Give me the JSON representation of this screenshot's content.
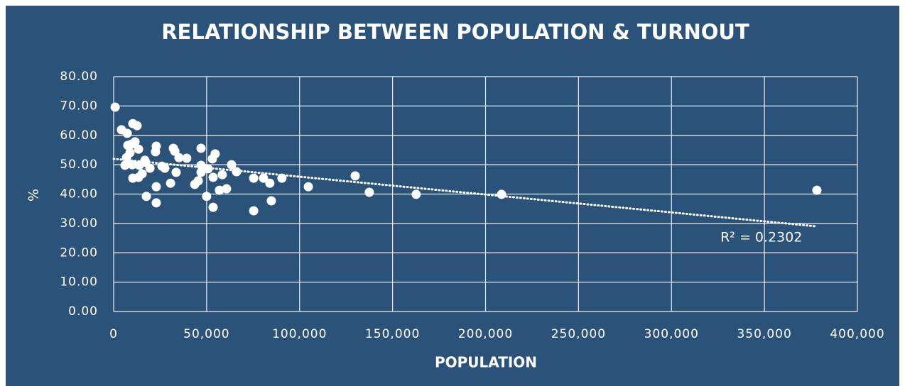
{
  "chart_data": {
    "type": "scatter",
    "title": "RELATIONSHIP BETWEEN POPULATION & TURNOUT",
    "x_label": "POPULATION",
    "y_label": "%",
    "color": "#ffffff",
    "grid": true,
    "xlim": [
      0,
      400000
    ],
    "ylim": [
      0,
      80
    ],
    "xticks": [
      0,
      {
        "value": 50000,
        "label": "50,000"
      },
      {
        "value": 100000,
        "label": "100,000"
      },
      {
        "value": 150000,
        "label": "150,000"
      },
      {
        "value": 200000,
        "label": "200,000"
      },
      {
        "value": 250000,
        "label": "250,000"
      },
      {
        "value": 300000,
        "label": "300,000"
      },
      {
        "value": 350000,
        "label": "350,000"
      },
      {
        "value": 400000,
        "label": "400,000"
      }
    ],
    "yticks": [
      {
        "value": 0,
        "label": "0.00"
      },
      {
        "value": 10,
        "label": "10.00"
      },
      {
        "value": 20,
        "label": "20.00"
      },
      {
        "value": 30,
        "label": "30.00"
      },
      {
        "value": 40,
        "label": "40.00"
      },
      {
        "value": 50,
        "label": "50.00"
      },
      {
        "value": 60,
        "label": "60.00"
      },
      {
        "value": 70,
        "label": "70.00"
      },
      {
        "value": 80,
        "label": "80.00"
      }
    ],
    "x": [
      800,
      4200,
      7300,
      10300,
      12600,
      7600,
      9600,
      11500,
      13400,
      8800,
      6900,
      6100,
      10000,
      13800,
      17200,
      16800,
      15300,
      10300,
      13400,
      19500,
      22900,
      22500,
      22900,
      17600,
      22900,
      26000,
      27500,
      30600,
      32100,
      32900,
      35100,
      39300,
      33600,
      43600,
      45500,
      47000,
      47000,
      48600,
      47000,
      50800,
      50000,
      53500,
      53100,
      54600,
      53500,
      56900,
      58400,
      60700,
      63400,
      66100,
      75300,
      75300,
      80600,
      84000,
      84800,
      90500,
      104700,
      129900,
      137500,
      162700,
      208600,
      378200
    ],
    "values": [
      69.6,
      61.9,
      60.7,
      64,
      63.3,
      56.6,
      57,
      57.8,
      55.3,
      54.1,
      52.4,
      49.8,
      50,
      49.8,
      50.8,
      51.5,
      46.9,
      45.4,
      45.7,
      48.8,
      56.3,
      54.4,
      42.5,
      39.2,
      37,
      49.5,
      48.8,
      43.7,
      55.6,
      54.6,
      52.4,
      52.2,
      47.4,
      43.3,
      44.5,
      55.6,
      49.8,
      48.8,
      47.4,
      48.6,
      39.2,
      35.5,
      52,
      53.7,
      45.7,
      41.3,
      46.6,
      41.8,
      50,
      47.6,
      34.3,
      45.4,
      45.4,
      43.7,
      37.7,
      45.4,
      42.5,
      46.2,
      40.6,
      39.9,
      39.9,
      41.3
    ],
    "trendline": {
      "x": [
        0,
        378000
      ],
      "values": [
        52,
        29
      ]
    },
    "annotation": "R² = 0.2302"
  }
}
